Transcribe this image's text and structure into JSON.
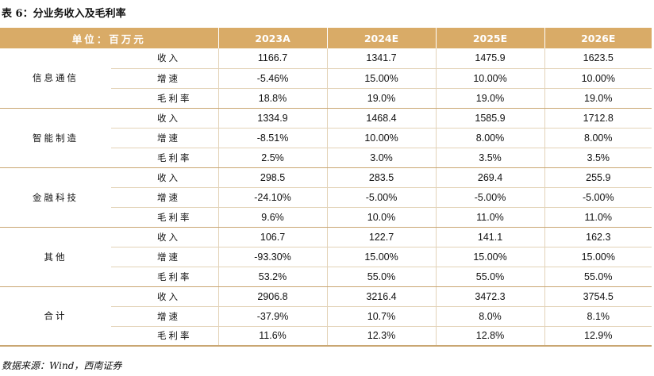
{
  "title": "表 6：分业务收入及毛利率",
  "header": {
    "unit_label": "单位：百万元",
    "years": [
      "2023A",
      "2024E",
      "2025E",
      "2026E"
    ]
  },
  "segments": [
    {
      "name": "信息通信",
      "rows": [
        {
          "metric": "收入",
          "values": [
            "1166.7",
            "1341.7",
            "1475.9",
            "1623.5"
          ]
        },
        {
          "metric": "增速",
          "values": [
            "-5.46%",
            "15.00%",
            "10.00%",
            "10.00%"
          ]
        },
        {
          "metric": "毛利率",
          "values": [
            "18.8%",
            "19.0%",
            "19.0%",
            "19.0%"
          ]
        }
      ]
    },
    {
      "name": "智能制造",
      "rows": [
        {
          "metric": "收入",
          "values": [
            "1334.9",
            "1468.4",
            "1585.9",
            "1712.8"
          ]
        },
        {
          "metric": "增速",
          "values": [
            "-8.51%",
            "10.00%",
            "8.00%",
            "8.00%"
          ]
        },
        {
          "metric": "毛利率",
          "values": [
            "2.5%",
            "3.0%",
            "3.5%",
            "3.5%"
          ]
        }
      ]
    },
    {
      "name": "金融科技",
      "rows": [
        {
          "metric": "收入",
          "values": [
            "298.5",
            "283.5",
            "269.4",
            "255.9"
          ]
        },
        {
          "metric": "增速",
          "values": [
            "-24.10%",
            "-5.00%",
            "-5.00%",
            "-5.00%"
          ]
        },
        {
          "metric": "毛利率",
          "values": [
            "9.6%",
            "10.0%",
            "11.0%",
            "11.0%"
          ]
        }
      ]
    },
    {
      "name": "其他",
      "rows": [
        {
          "metric": "收入",
          "values": [
            "106.7",
            "122.7",
            "141.1",
            "162.3"
          ]
        },
        {
          "metric": "增速",
          "values": [
            "-93.30%",
            "15.00%",
            "15.00%",
            "15.00%"
          ]
        },
        {
          "metric": "毛利率",
          "values": [
            "53.2%",
            "55.0%",
            "55.0%",
            "55.0%"
          ]
        }
      ]
    },
    {
      "name": "合计",
      "rows": [
        {
          "metric": "收入",
          "values": [
            "2906.8",
            "3216.4",
            "3472.3",
            "3754.5"
          ]
        },
        {
          "metric": "增速",
          "values": [
            "-37.9%",
            "10.7%",
            "8.0%",
            "8.1%"
          ]
        },
        {
          "metric": "毛利率",
          "values": [
            "11.6%",
            "12.3%",
            "12.8%",
            "12.9%"
          ]
        }
      ]
    }
  ],
  "source": "数据来源：Wind，西南证券",
  "colors": {
    "header_bg": "#d9ab67",
    "border": "#c9a672"
  }
}
